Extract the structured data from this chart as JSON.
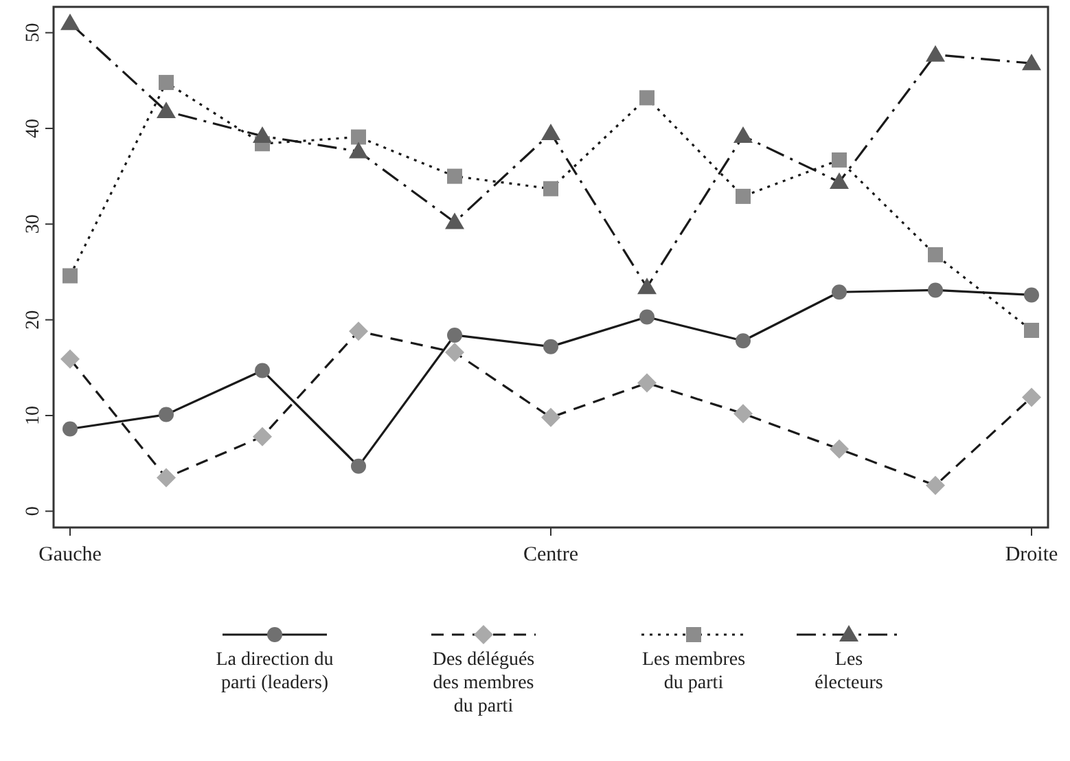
{
  "chart_data": {
    "type": "line",
    "categories": [
      "Gauche",
      null,
      null,
      null,
      null,
      "Centre",
      null,
      null,
      null,
      null,
      "Droite"
    ],
    "ylim": [
      -1.7,
      52.7
    ],
    "yticks": [
      0,
      10,
      20,
      30,
      40,
      50
    ],
    "grid": false,
    "legend": "bottom",
    "series": [
      {
        "name": "La direction du parti (leaders)",
        "color": "#707070",
        "marker": "circle",
        "line_style": "solid",
        "values": [
          8.6,
          10.1,
          14.7,
          4.7,
          18.4,
          17.2,
          20.3,
          17.8,
          22.9,
          23.1,
          22.6
        ]
      },
      {
        "name": "Des délégués des membres du parti",
        "color": "#aaaaaa",
        "marker": "diamond",
        "line_style": "dashed",
        "values": [
          15.9,
          3.5,
          7.8,
          18.8,
          16.6,
          9.8,
          13.4,
          10.2,
          6.5,
          2.7,
          11.9
        ]
      },
      {
        "name": "Les membres du parti",
        "color": "#8c8c8c",
        "marker": "square",
        "line_style": "dotted",
        "values": [
          24.6,
          44.8,
          38.4,
          39.1,
          35.0,
          33.7,
          43.2,
          32.9,
          36.7,
          26.8,
          18.9
        ]
      },
      {
        "name": "Les électeurs",
        "color": "#595959",
        "marker": "triangle",
        "line_style": "dashdot",
        "values": [
          51.0,
          41.8,
          39.2,
          37.6,
          30.2,
          39.5,
          23.4,
          39.2,
          34.4,
          47.7,
          46.8
        ]
      }
    ]
  }
}
